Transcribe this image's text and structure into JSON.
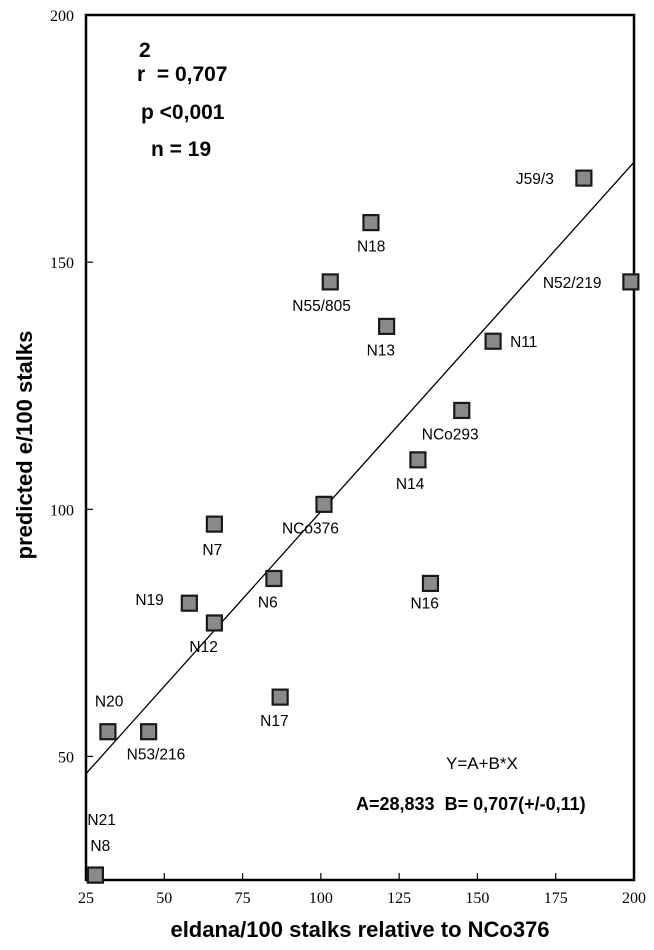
{
  "chart_data": {
    "type": "scatter",
    "xlabel": "eldana/100 stalks relative to NCo376",
    "ylabel": "predicted e/100 stalks",
    "xlim": [
      25,
      200
    ],
    "ylim": [
      25,
      200
    ],
    "x_ticks": [
      "25",
      "50",
      "75",
      "100",
      "125",
      "150",
      "175",
      "200"
    ],
    "y_ticks": [
      "50",
      "100",
      "150",
      "200"
    ],
    "points": [
      {
        "label": "J59/3",
        "x": 184,
        "y": 167
      },
      {
        "label": "N18",
        "x": 116,
        "y": 158
      },
      {
        "label": "N55/805",
        "x": 103,
        "y": 146
      },
      {
        "label": "N52/219",
        "x": 199,
        "y": 146
      },
      {
        "label": "N13",
        "x": 121,
        "y": 137
      },
      {
        "label": "N11",
        "x": 155,
        "y": 134
      },
      {
        "label": "NCo293",
        "x": 145,
        "y": 120
      },
      {
        "label": "N14",
        "x": 131,
        "y": 110
      },
      {
        "label": "NCo376",
        "x": 101,
        "y": 101
      },
      {
        "label": "N7",
        "x": 66,
        "y": 97
      },
      {
        "label": "N6",
        "x": 85,
        "y": 86
      },
      {
        "label": "N16",
        "x": 135,
        "y": 85
      },
      {
        "label": "N19",
        "x": 58,
        "y": 81
      },
      {
        "label": "N12",
        "x": 66,
        "y": 77
      },
      {
        "label": "N17",
        "x": 87,
        "y": 62
      },
      {
        "label": "N20",
        "x": 32,
        "y": 55
      },
      {
        "label": "N53/216",
        "x": 45,
        "y": 55
      },
      {
        "label": "N21",
        "x": 28,
        "y": 26
      },
      {
        "label": "N8",
        "x": 28,
        "y": 26
      }
    ],
    "regression": {
      "intercept": 28.833,
      "slope": 0.707
    },
    "stats": {
      "r2_sup": "2",
      "r2_text": "r  = 0,707",
      "p_text": "p <0,001",
      "n_text": "n = 19"
    },
    "equation": {
      "model": "Y=A+B*X",
      "coefficients": "A=28,833  B= 0,707(+/-0,11)"
    },
    "grid": false,
    "legend": "none"
  }
}
